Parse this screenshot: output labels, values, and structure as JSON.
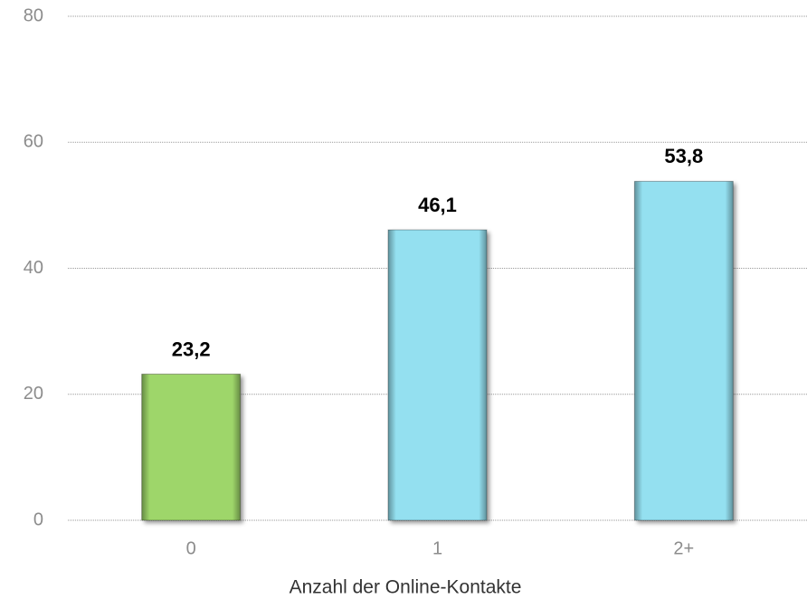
{
  "chart_data": {
    "type": "bar",
    "x_label": "Anzahl der Online-Kontakte",
    "categories": [
      "0",
      "1",
      "2+"
    ],
    "values": [
      23.2,
      46.1,
      53.8
    ],
    "value_labels": [
      "23,2",
      "46,1",
      "53,8"
    ],
    "colors": [
      "#9ed66a",
      "#94e0f0",
      "#94e0f0"
    ],
    "ylim": [
      0,
      80
    ],
    "yticks": [
      0,
      20,
      40,
      60,
      80
    ],
    "grid": true
  }
}
